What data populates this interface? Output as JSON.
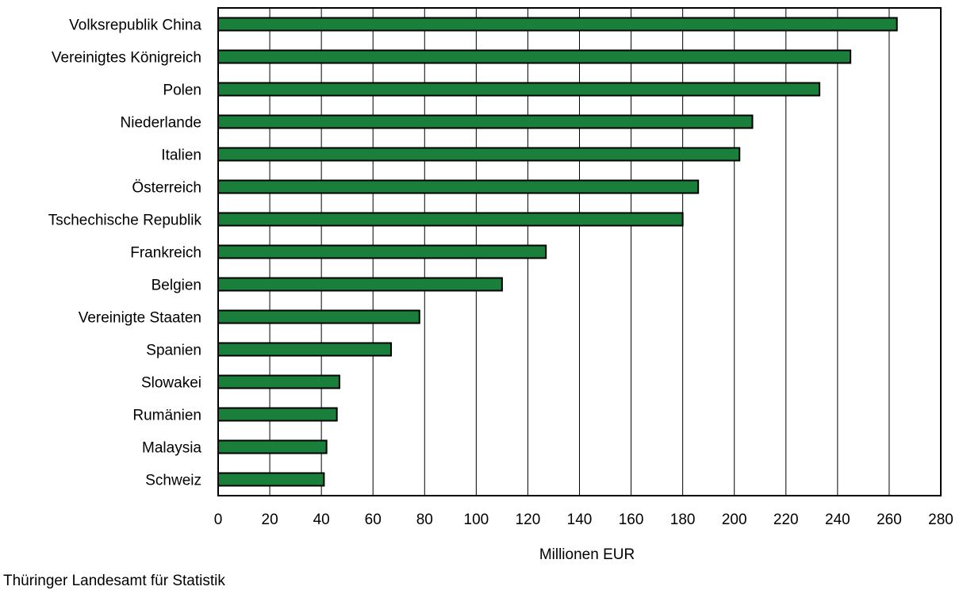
{
  "chart_data": {
    "type": "bar",
    "orientation": "horizontal",
    "categories": [
      "Volksrepublik China",
      "Vereinigtes Königreich",
      "Polen",
      "Niederlande",
      "Italien",
      "Österreich",
      "Tschechische Republik",
      "Frankreich",
      "Belgien",
      "Vereinigte Staaten",
      "Spanien",
      "Slowakei",
      "Rumänien",
      "Malaysia",
      "Schweiz"
    ],
    "values": [
      263,
      245,
      233,
      207,
      202,
      186,
      180,
      127,
      110,
      78,
      67,
      47,
      46,
      42,
      41
    ],
    "xlabel": "Millionen EUR",
    "xlim": [
      0,
      280
    ],
    "xticks": [
      "0",
      "20",
      "40",
      "60",
      "80",
      "100",
      "120",
      "140",
      "160",
      "180",
      "200",
      "220",
      "240",
      "260",
      "280"
    ],
    "grid": "vertical",
    "bar_color": "#1a7f3a"
  },
  "source": "Thüringer Landesamt für Statistik"
}
